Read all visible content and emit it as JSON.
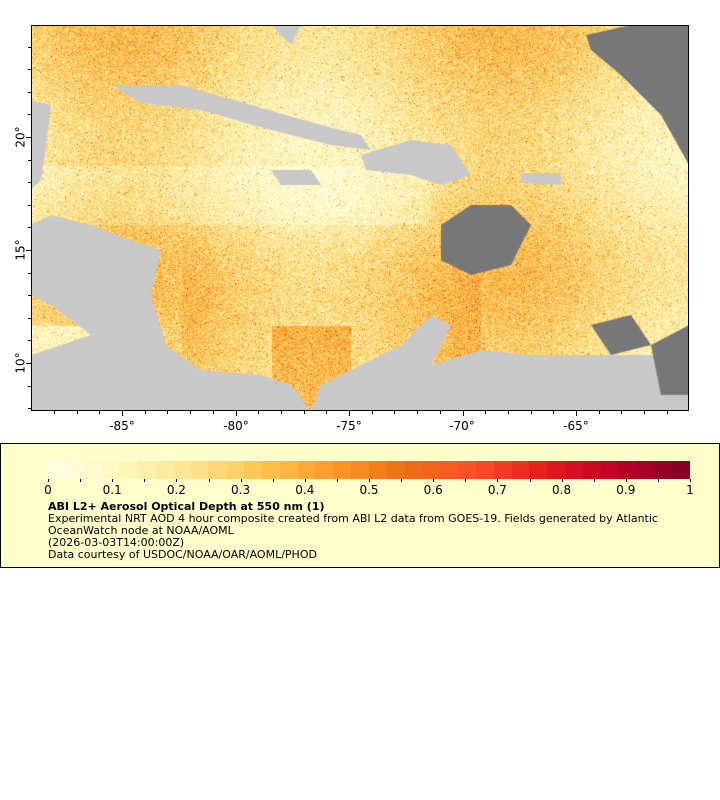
{
  "map": {
    "x_ticks": [
      "-85°",
      "-80°",
      "-75°",
      "-70°",
      "-65°"
    ],
    "y_ticks": [
      "20°",
      "15°",
      "10°"
    ],
    "land_color": "#c8c8c8",
    "no_data_color": "#777777"
  },
  "legend": {
    "colorbar_ticks": [
      "0",
      "0.1",
      "0.2",
      "0.3",
      "0.4",
      "0.5",
      "0.6",
      "0.7",
      "0.8",
      "0.9",
      "1"
    ],
    "colorbar_range": [
      0,
      1
    ],
    "colormap": [
      "#ffffe5",
      "#fff7bc",
      "#fee391",
      "#fec44f",
      "#fe9929",
      "#ec7014",
      "#fc4e2a",
      "#e31a1c",
      "#bd0026",
      "#800026"
    ],
    "title": "ABI L2+ Aerosol Optical Depth at 550 nm (1)",
    "line1": "Experimental NRT AOD 4 hour composite created from ABI L2 data from GOES-19. Fields generated by Atlantic",
    "line2": "OceanWatch node at NOAA/AOML",
    "time": "(2026-03-03T14:00:00Z)",
    "credit": "Data courtesy of USDOC/NOAA/OAR/AOML/PHOD"
  }
}
